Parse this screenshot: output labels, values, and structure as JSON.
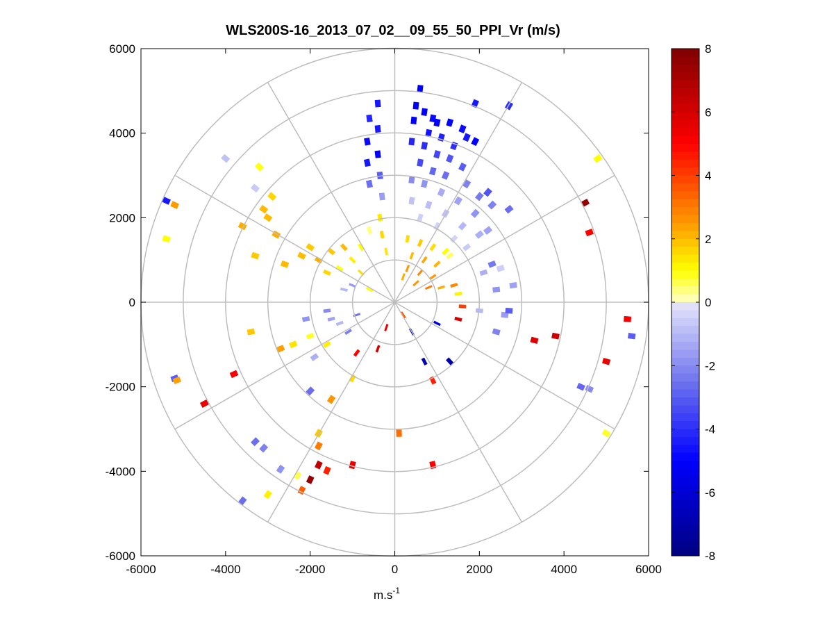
{
  "chart_data": {
    "type": "polar-ppi",
    "title": "WLS200S-16_2013_07_02__09_55_50_PPI_Vr (m/s)",
    "xlabel": "m.s",
    "xlabel_sup": "-1",
    "ylabel": "",
    "xlim": [
      -6000,
      6000
    ],
    "ylim": [
      -6000,
      6000
    ],
    "x_ticks": [
      -6000,
      -4000,
      -2000,
      0,
      2000,
      4000,
      6000
    ],
    "y_ticks": [
      -6000,
      -4000,
      -2000,
      0,
      2000,
      4000,
      6000
    ],
    "x_tick_labels": [
      "-6000",
      "-4000",
      "-2000",
      "0",
      "2000",
      "4000",
      "6000"
    ],
    "y_tick_labels": [
      "-6000",
      "-4000",
      "-2000",
      "0",
      "2000",
      "4000",
      "6000"
    ],
    "range_rings_m": [
      1000,
      2000,
      3000,
      4000,
      5000,
      6000
    ],
    "spoke_angles_deg": [
      0,
      30,
      60,
      90,
      120,
      150,
      180,
      210,
      240,
      270,
      300,
      330
    ],
    "colorbar": {
      "min": -8,
      "max": 8,
      "ticks": [
        8,
        6,
        4,
        2,
        0,
        -2,
        -4,
        -6,
        -8
      ],
      "tick_labels": [
        "8",
        "6",
        "4",
        "2",
        "0",
        "-2",
        "-4",
        "-6",
        "-8"
      ],
      "stops": [
        {
          "v": -8,
          "color": "#000080"
        },
        {
          "v": -5,
          "color": "#0000ff"
        },
        {
          "v": -2.5,
          "color": "#6f74ee"
        },
        {
          "v": 0,
          "color": "#e6e6fa"
        },
        {
          "v": 0.05,
          "color": "#ffffc0"
        },
        {
          "v": 1,
          "color": "#ffff00"
        },
        {
          "v": 2.5,
          "color": "#ff9900"
        },
        {
          "v": 5,
          "color": "#ff0000"
        },
        {
          "v": 8,
          "color": "#800000"
        }
      ]
    },
    "cells": [
      {
        "x": 600,
        "y": 5050,
        "v": -5.0
      },
      {
        "x": 500,
        "y": 4650,
        "v": -5.2
      },
      {
        "x": 700,
        "y": 4500,
        "v": -5.0
      },
      {
        "x": 900,
        "y": 4350,
        "v": -4.8
      },
      {
        "x": 1000,
        "y": 4250,
        "v": -5.0
      },
      {
        "x": 1300,
        "y": 4250,
        "v": -5.0
      },
      {
        "x": 1600,
        "y": 4100,
        "v": -4.8
      },
      {
        "x": 1700,
        "y": 3900,
        "v": -4.5
      },
      {
        "x": 1900,
        "y": 3800,
        "v": -5.0
      },
      {
        "x": 1900,
        "y": 4700,
        "v": -4.5
      },
      {
        "x": 2700,
        "y": 4650,
        "v": -4.0
      },
      {
        "x": 450,
        "y": 4300,
        "v": -5.2
      },
      {
        "x": 800,
        "y": 4000,
        "v": -4.6
      },
      {
        "x": 1100,
        "y": 3900,
        "v": -4.3
      },
      {
        "x": 1400,
        "y": 3700,
        "v": -4.0
      },
      {
        "x": 700,
        "y": 3700,
        "v": -4.0
      },
      {
        "x": 400,
        "y": 3800,
        "v": -4.2
      },
      {
        "x": 1000,
        "y": 3500,
        "v": -3.5
      },
      {
        "x": 1300,
        "y": 3400,
        "v": -3.2
      },
      {
        "x": 1600,
        "y": 3200,
        "v": -3.0
      },
      {
        "x": 600,
        "y": 3300,
        "v": -3.4
      },
      {
        "x": 900,
        "y": 3100,
        "v": -2.8
      },
      {
        "x": 1200,
        "y": 3000,
        "v": -2.6
      },
      {
        "x": 1700,
        "y": 2800,
        "v": -2.2
      },
      {
        "x": 2000,
        "y": 2500,
        "v": -2.4
      },
      {
        "x": 2300,
        "y": 2300,
        "v": -2.2
      },
      {
        "x": 1900,
        "y": 2100,
        "v": -1.8
      },
      {
        "x": 1500,
        "y": 2400,
        "v": -1.5
      },
      {
        "x": 1100,
        "y": 2600,
        "v": -1.3
      },
      {
        "x": 700,
        "y": 2800,
        "v": -1.8
      },
      {
        "x": 400,
        "y": 2900,
        "v": -2.0
      },
      {
        "x": 800,
        "y": 2300,
        "v": -0.9
      },
      {
        "x": 1200,
        "y": 2100,
        "v": -0.8
      },
      {
        "x": 1600,
        "y": 1800,
        "v": -1.0
      },
      {
        "x": 2000,
        "y": 1600,
        "v": -1.2
      },
      {
        "x": 400,
        "y": 2400,
        "v": -0.8
      },
      {
        "x": 600,
        "y": 2000,
        "v": -0.5
      },
      {
        "x": 1000,
        "y": 1800,
        "v": -0.4
      },
      {
        "x": 1400,
        "y": 1500,
        "v": -0.4
      },
      {
        "x": 1700,
        "y": 1300,
        "v": -0.6
      },
      {
        "x": 2200,
        "y": 1700,
        "v": -1.5
      },
      {
        "x": 1300,
        "y": 1100,
        "v": 0.5
      },
      {
        "x": 300,
        "y": 1500,
        "v": 1.5
      },
      {
        "x": 600,
        "y": 1400,
        "v": 1.8
      },
      {
        "x": 900,
        "y": 1300,
        "v": 1.5
      },
      {
        "x": 1200,
        "y": 1200,
        "v": 1.0
      },
      {
        "x": 400,
        "y": 1100,
        "v": 2.0
      },
      {
        "x": 700,
        "y": 1000,
        "v": 2.3
      },
      {
        "x": 1000,
        "y": 900,
        "v": 2.1
      },
      {
        "x": 300,
        "y": 800,
        "v": 2.6
      },
      {
        "x": 600,
        "y": 700,
        "v": 2.8
      },
      {
        "x": 900,
        "y": 600,
        "v": 2.5
      },
      {
        "x": 200,
        "y": 600,
        "v": 2.2
      },
      {
        "x": 500,
        "y": 450,
        "v": 2.5
      },
      {
        "x": 800,
        "y": 350,
        "v": 3.0
      },
      {
        "x": 1100,
        "y": 350,
        "v": 2.2
      },
      {
        "x": 1400,
        "y": 400,
        "v": 2.8
      },
      {
        "x": 1500,
        "y": 200,
        "v": 1.2
      },
      {
        "x": -400,
        "y": 4700,
        "v": -4.5
      },
      {
        "x": -600,
        "y": 4350,
        "v": -4.2
      },
      {
        "x": -400,
        "y": 4100,
        "v": -4.5
      },
      {
        "x": -650,
        "y": 3800,
        "v": -4.8
      },
      {
        "x": -400,
        "y": 3500,
        "v": -5.0
      },
      {
        "x": -650,
        "y": 3300,
        "v": -4.5
      },
      {
        "x": -350,
        "y": 3000,
        "v": -3.0
      },
      {
        "x": -600,
        "y": 2800,
        "v": -2.6
      },
      {
        "x": -300,
        "y": 2500,
        "v": -1.6
      },
      {
        "x": -350,
        "y": 2000,
        "v": 1.3
      },
      {
        "x": -300,
        "y": 1600,
        "v": 1.6
      },
      {
        "x": -200,
        "y": 1200,
        "v": 1.4
      },
      {
        "x": -1200,
        "y": 1300,
        "v": 2.0
      },
      {
        "x": -1500,
        "y": 1200,
        "v": 1.8
      },
      {
        "x": -1800,
        "y": 1000,
        "v": 2.2
      },
      {
        "x": -1000,
        "y": 1000,
        "v": 1.2
      },
      {
        "x": -1300,
        "y": 800,
        "v": 0.9
      },
      {
        "x": -800,
        "y": 700,
        "v": 1.5
      },
      {
        "x": -1600,
        "y": 700,
        "v": 1.6
      },
      {
        "x": -1000,
        "y": 400,
        "v": -1.6
      },
      {
        "x": -600,
        "y": 300,
        "v": 1.0
      },
      {
        "x": -1200,
        "y": 300,
        "v": -1.0
      },
      {
        "x": -2000,
        "y": 1300,
        "v": 1.8
      },
      {
        "x": -2200,
        "y": 1100,
        "v": 2.0
      },
      {
        "x": -2600,
        "y": 900,
        "v": 2.0
      },
      {
        "x": -2800,
        "y": 1600,
        "v": 2.2
      },
      {
        "x": -3100,
        "y": 2200,
        "v": 2.0
      },
      {
        "x": -2900,
        "y": 2500,
        "v": 1.6
      },
      {
        "x": -3000,
        "y": 2000,
        "v": 2.0
      },
      {
        "x": -3600,
        "y": 1800,
        "v": 2.2
      },
      {
        "x": -3300,
        "y": 1100,
        "v": 1.8
      },
      {
        "x": -3200,
        "y": 3200,
        "v": 0.9
      },
      {
        "x": -3300,
        "y": 2700,
        "v": -0.6
      },
      {
        "x": -4000,
        "y": 3400,
        "v": -0.8
      },
      {
        "x": -5400,
        "y": 2400,
        "v": -4.5
      },
      {
        "x": -5200,
        "y": 2300,
        "v": 2.5
      },
      {
        "x": -5400,
        "y": 1500,
        "v": 1.0
      },
      {
        "x": -3400,
        "y": -700,
        "v": 1.8
      },
      {
        "x": -2700,
        "y": -1100,
        "v": 2.4
      },
      {
        "x": -2400,
        "y": -1000,
        "v": 1.4
      },
      {
        "x": -2000,
        "y": -800,
        "v": 0.8
      },
      {
        "x": -1900,
        "y": -1300,
        "v": -1.2
      },
      {
        "x": -1600,
        "y": -1000,
        "v": 1.2
      },
      {
        "x": -1500,
        "y": -400,
        "v": -1.5
      },
      {
        "x": -1100,
        "y": -700,
        "v": -2.2
      },
      {
        "x": -900,
        "y": -300,
        "v": -2.5
      },
      {
        "x": -2100,
        "y": -400,
        "v": -1.8
      },
      {
        "x": -2000,
        "y": -2100,
        "v": -2.6
      },
      {
        "x": -1500,
        "y": -2300,
        "v": 2.6
      },
      {
        "x": -1000,
        "y": -1800,
        "v": 1.5
      },
      {
        "x": -900,
        "y": -1200,
        "v": 5.0
      },
      {
        "x": -3800,
        "y": -1700,
        "v": 5.2
      },
      {
        "x": -5200,
        "y": -1800,
        "v": -3.0
      },
      {
        "x": -5150,
        "y": -1850,
        "v": 2.4
      },
      {
        "x": -4500,
        "y": -2400,
        "v": 5.5
      },
      {
        "x": -3300,
        "y": -3300,
        "v": -2.6
      },
      {
        "x": -3100,
        "y": -3450,
        "v": -2.2
      },
      {
        "x": -2700,
        "y": -3950,
        "v": -1.8
      },
      {
        "x": -2300,
        "y": -4100,
        "v": 0.6
      },
      {
        "x": -2000,
        "y": -4200,
        "v": 7.5
      },
      {
        "x": -1800,
        "y": -3850,
        "v": 6.5
      },
      {
        "x": -1600,
        "y": -3980,
        "v": 4.5
      },
      {
        "x": -2200,
        "y": -4450,
        "v": 3.5
      },
      {
        "x": -3000,
        "y": -4550,
        "v": 1.2
      },
      {
        "x": -3600,
        "y": -4700,
        "v": -2.6
      },
      {
        "x": -1800,
        "y": -3100,
        "v": 1.8
      },
      {
        "x": -1800,
        "y": -3400,
        "v": 3.0
      },
      {
        "x": -1000,
        "y": -3850,
        "v": 5.5
      },
      {
        "x": 100,
        "y": -3100,
        "v": 3.2
      },
      {
        "x": 900,
        "y": -3850,
        "v": 5.0
      },
      {
        "x": 900,
        "y": -1850,
        "v": 4.5
      },
      {
        "x": 1500,
        "y": -400,
        "v": 6.0
      },
      {
        "x": 1600,
        "y": -100,
        "v": 4.0
      },
      {
        "x": 2000,
        "y": -200,
        "v": -1.0
      },
      {
        "x": 2600,
        "y": -300,
        "v": -1.6
      },
      {
        "x": 2700,
        "y": -200,
        "v": -3.0
      },
      {
        "x": 2400,
        "y": -700,
        "v": -2.2
      },
      {
        "x": 2400,
        "y": 300,
        "v": -1.8
      },
      {
        "x": 2800,
        "y": 400,
        "v": -1.5
      },
      {
        "x": 2100,
        "y": 700,
        "v": -1.2
      },
      {
        "x": 2300,
        "y": 900,
        "v": -2.4
      },
      {
        "x": 2500,
        "y": 800,
        "v": -0.5
      },
      {
        "x": 3300,
        "y": -900,
        "v": 5.8
      },
      {
        "x": 3800,
        "y": -800,
        "v": 6.2
      },
      {
        "x": 4400,
        "y": -2000,
        "v": -2.8
      },
      {
        "x": 4600,
        "y": -2050,
        "v": -2.0
      },
      {
        "x": 5000,
        "y": -1400,
        "v": 5.5
      },
      {
        "x": 5500,
        "y": -400,
        "v": 5.2
      },
      {
        "x": 5600,
        "y": -800,
        "v": -3.0
      },
      {
        "x": 4500,
        "y": 2350,
        "v": 7.5
      },
      {
        "x": 4600,
        "y": 1650,
        "v": 5.0
      },
      {
        "x": 4800,
        "y": 3400,
        "v": 1.0
      },
      {
        "x": 5000,
        "y": -3100,
        "v": 0.8
      },
      {
        "x": 2700,
        "y": 2200,
        "v": -2.6
      },
      {
        "x": 2200,
        "y": 2600,
        "v": -3.2
      },
      {
        "x": 200,
        "y": -300,
        "v": 3.5
      },
      {
        "x": 400,
        "y": -700,
        "v": -6.5
      },
      {
        "x": -200,
        "y": -600,
        "v": 5.5
      },
      {
        "x": -400,
        "y": -1100,
        "v": 6.0
      },
      {
        "x": 700,
        "y": -1400,
        "v": -6.8
      },
      {
        "x": 1300,
        "y": -1400,
        "v": -7.0
      },
      {
        "x": 1000,
        "y": -500,
        "v": -5.5
      },
      {
        "x": -1600,
        "y": -200,
        "v": -2.0
      },
      {
        "x": -1300,
        "y": -500,
        "v": -1.0
      },
      {
        "x": -800,
        "y": 1300,
        "v": 1.0
      },
      {
        "x": -600,
        "y": 1700,
        "v": 0.4
      }
    ]
  }
}
